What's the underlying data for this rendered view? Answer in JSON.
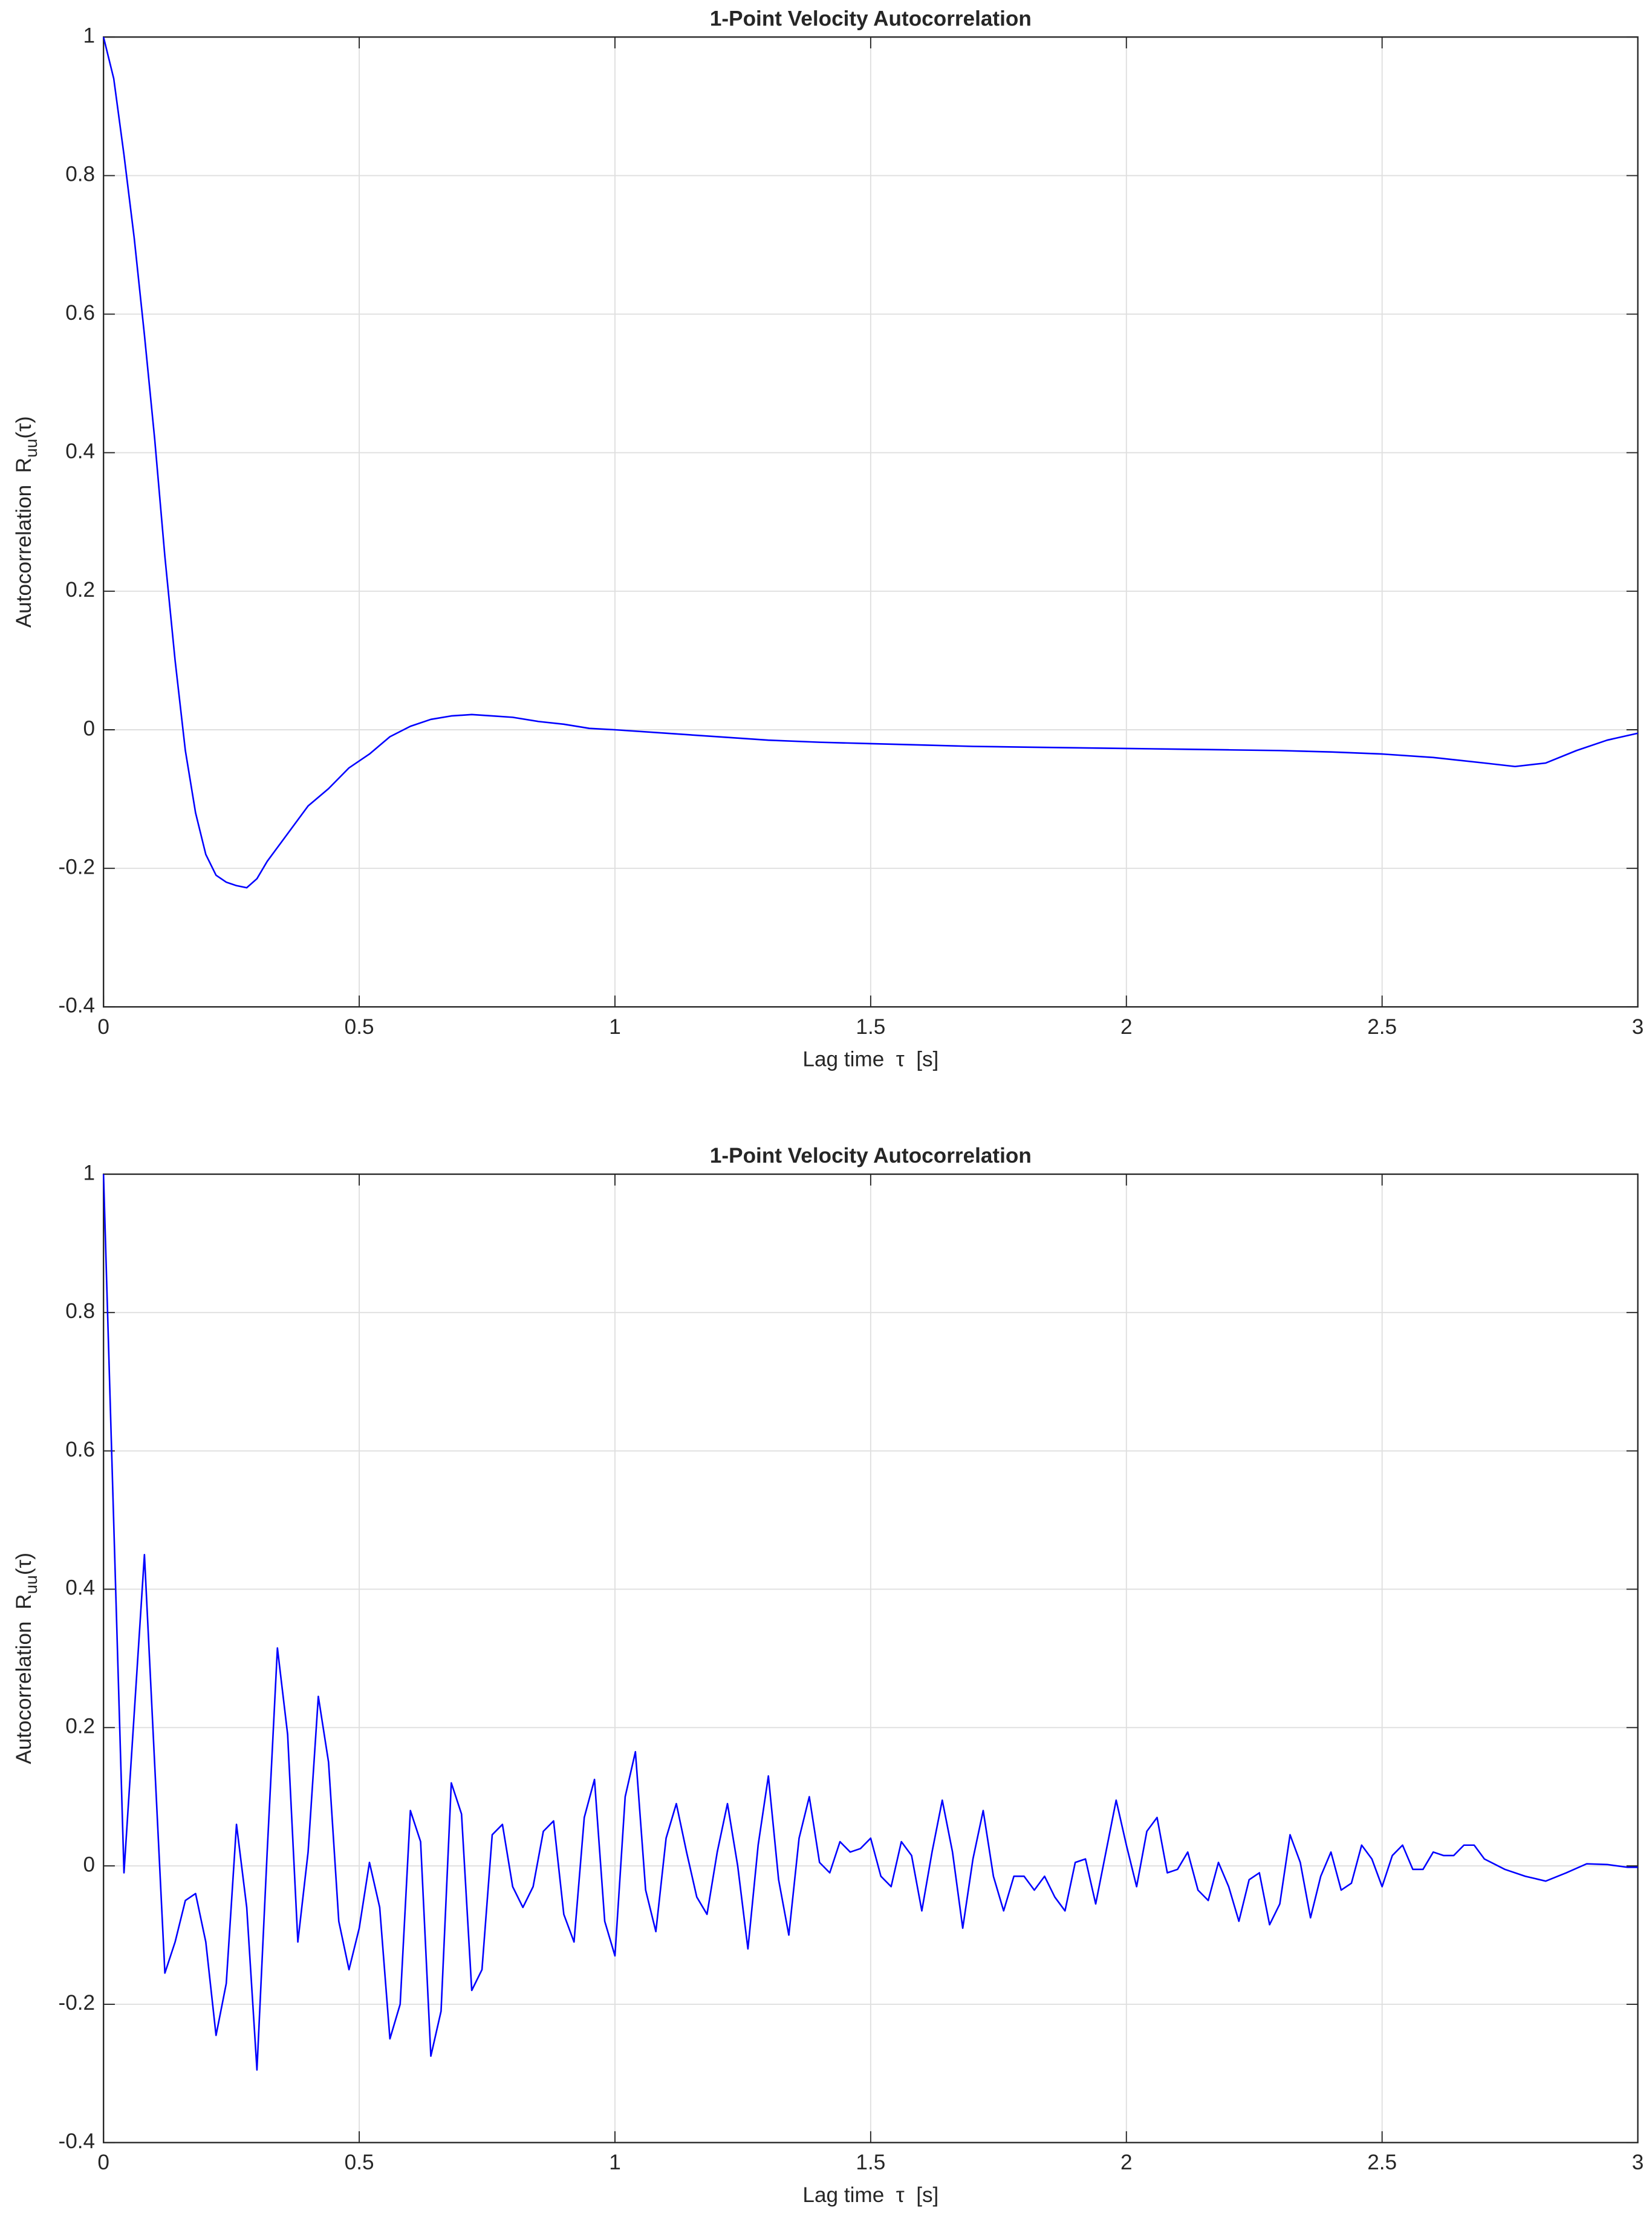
{
  "chart_data": [
    {
      "type": "line",
      "title": "1-Point Velocity Autocorrelation",
      "xlabel": "Lag time  τ  [s]",
      "ylabel": {
        "text": "Autocorrelation  R",
        "subscript": "uu",
        "suffix": "(τ)"
      },
      "color": "#0000ff",
      "grid": true,
      "xlim": [
        0,
        3
      ],
      "xticks": [
        0,
        0.5,
        1,
        1.5,
        2,
        2.5,
        3
      ],
      "ylim": [
        -0.4,
        1
      ],
      "yticks": [
        -0.4,
        -0.2,
        0,
        0.2,
        0.4,
        0.6,
        0.8,
        1
      ],
      "x": [
        0,
        0.02,
        0.04,
        0.06,
        0.08,
        0.1,
        0.12,
        0.14,
        0.16,
        0.18,
        0.2,
        0.22,
        0.24,
        0.26,
        0.28,
        0.3,
        0.32,
        0.34,
        0.36,
        0.4,
        0.44,
        0.48,
        0.52,
        0.56,
        0.6,
        0.64,
        0.68,
        0.72,
        0.76,
        0.8,
        0.85,
        0.9,
        0.95,
        1.0,
        1.1,
        1.2,
        1.3,
        1.4,
        1.5,
        1.6,
        1.7,
        1.8,
        1.9,
        2.0,
        2.1,
        2.2,
        2.3,
        2.4,
        2.5,
        2.6,
        2.7,
        2.76,
        2.82,
        2.88,
        2.94,
        3.0
      ],
      "values": [
        1,
        0.94,
        0.83,
        0.71,
        0.57,
        0.42,
        0.25,
        0.1,
        -0.03,
        -0.12,
        -0.18,
        -0.21,
        -0.22,
        -0.225,
        -0.228,
        -0.215,
        -0.19,
        -0.17,
        -0.15,
        -0.11,
        -0.085,
        -0.055,
        -0.035,
        -0.01,
        0.005,
        0.015,
        0.02,
        0.022,
        0.02,
        0.018,
        0.012,
        0.008,
        0.002,
        0.0,
        -0.005,
        -0.01,
        -0.015,
        -0.018,
        -0.02,
        -0.022,
        -0.024,
        -0.025,
        -0.026,
        -0.027,
        -0.028,
        -0.029,
        -0.03,
        -0.032,
        -0.035,
        -0.04,
        -0.048,
        -0.053,
        -0.048,
        -0.03,
        -0.015,
        -0.005
      ]
    },
    {
      "type": "line",
      "title": "1-Point Velocity Autocorrelation",
      "xlabel": "Lag time  τ  [s]",
      "ylabel": {
        "text": "Autocorrelation  R",
        "subscript": "uu",
        "suffix": "(τ)"
      },
      "color": "#0000ff",
      "grid": true,
      "xlim": [
        0,
        3
      ],
      "xticks": [
        0,
        0.5,
        1,
        1.5,
        2,
        2.5,
        3
      ],
      "ylim": [
        -0.4,
        1
      ],
      "yticks": [
        -0.4,
        -0.2,
        0,
        0.2,
        0.4,
        0.6,
        0.8,
        1
      ],
      "x": [
        0,
        0.04,
        0.08,
        0.12,
        0.14,
        0.16,
        0.18,
        0.2,
        0.22,
        0.24,
        0.26,
        0.28,
        0.3,
        0.32,
        0.34,
        0.36,
        0.38,
        0.4,
        0.42,
        0.44,
        0.46,
        0.48,
        0.5,
        0.52,
        0.54,
        0.56,
        0.58,
        0.6,
        0.62,
        0.64,
        0.66,
        0.68,
        0.7,
        0.72,
        0.74,
        0.76,
        0.78,
        0.8,
        0.82,
        0.84,
        0.86,
        0.88,
        0.9,
        0.92,
        0.94,
        0.96,
        0.98,
        1.0,
        1.02,
        1.04,
        1.06,
        1.08,
        1.1,
        1.12,
        1.14,
        1.16,
        1.18,
        1.2,
        1.22,
        1.24,
        1.26,
        1.28,
        1.3,
        1.32,
        1.34,
        1.36,
        1.38,
        1.4,
        1.42,
        1.44,
        1.46,
        1.48,
        1.5,
        1.52,
        1.54,
        1.56,
        1.58,
        1.6,
        1.62,
        1.64,
        1.66,
        1.68,
        1.7,
        1.72,
        1.74,
        1.76,
        1.78,
        1.8,
        1.82,
        1.84,
        1.86,
        1.88,
        1.9,
        1.92,
        1.94,
        1.96,
        1.98,
        2.0,
        2.02,
        2.04,
        2.06,
        2.08,
        2.1,
        2.12,
        2.14,
        2.16,
        2.18,
        2.2,
        2.22,
        2.24,
        2.26,
        2.28,
        2.3,
        2.32,
        2.34,
        2.36,
        2.38,
        2.4,
        2.42,
        2.44,
        2.46,
        2.48,
        2.5,
        2.52,
        2.54,
        2.56,
        2.58,
        2.6,
        2.62,
        2.64,
        2.66,
        2.68,
        2.7,
        2.74,
        2.78,
        2.82,
        2.86,
        2.9,
        2.94,
        2.98,
        3.0
      ],
      "values": [
        1,
        -0.01,
        0.45,
        -0.155,
        -0.11,
        -0.05,
        -0.04,
        -0.11,
        -0.245,
        -0.17,
        0.06,
        -0.06,
        -0.295,
        0.02,
        0.315,
        0.19,
        -0.11,
        0.02,
        0.245,
        0.15,
        -0.08,
        -0.15,
        -0.09,
        0.005,
        -0.06,
        -0.25,
        -0.2,
        0.08,
        0.035,
        -0.275,
        -0.21,
        0.12,
        0.075,
        -0.18,
        -0.15,
        0.045,
        0.06,
        -0.03,
        -0.06,
        -0.03,
        0.05,
        0.065,
        -0.07,
        -0.11,
        0.07,
        0.125,
        -0.08,
        -0.13,
        0.1,
        0.165,
        -0.035,
        -0.095,
        0.04,
        0.09,
        0.02,
        -0.045,
        -0.07,
        0.02,
        0.09,
        0.0,
        -0.12,
        0.03,
        0.13,
        -0.02,
        -0.1,
        0.04,
        0.1,
        0.005,
        -0.01,
        0.035,
        0.02,
        0.025,
        0.04,
        -0.015,
        -0.03,
        0.035,
        0.015,
        -0.065,
        0.02,
        0.095,
        0.02,
        -0.09,
        0.01,
        0.08,
        -0.015,
        -0.065,
        -0.015,
        -0.015,
        -0.035,
        -0.015,
        -0.045,
        -0.065,
        0.005,
        0.01,
        -0.055,
        0.02,
        0.095,
        0.03,
        -0.03,
        0.05,
        0.07,
        -0.01,
        -0.005,
        0.02,
        -0.035,
        -0.05,
        0.005,
        -0.03,
        -0.08,
        -0.02,
        -0.01,
        -0.085,
        -0.055,
        0.045,
        0.005,
        -0.075,
        -0.015,
        0.02,
        -0.035,
        -0.025,
        0.03,
        0.01,
        -0.03,
        0.015,
        0.03,
        -0.005,
        -0.005,
        0.02,
        0.015,
        0.015,
        0.03,
        0.03,
        0.01,
        -0.005,
        -0.015,
        -0.022,
        -0.01,
        0.003,
        0.002,
        -0.002,
        -0.002
      ]
    }
  ]
}
